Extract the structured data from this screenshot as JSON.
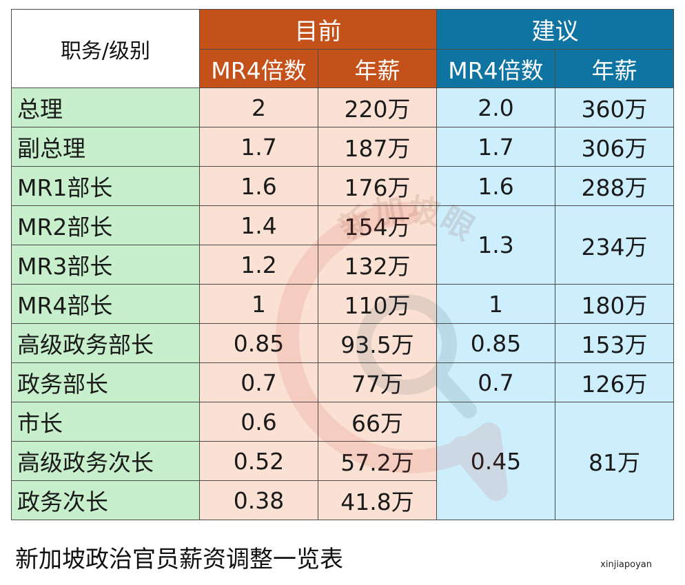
{
  "table": {
    "header": {
      "role_label": "职务/级别",
      "current_label": "目前",
      "proposed_label": "建议",
      "current_cols": [
        "MR4倍数",
        "年薪"
      ],
      "proposed_cols": [
        "MR4倍数",
        "年薪"
      ]
    },
    "rows": [
      {
        "role": "总理",
        "cur_mult": "2",
        "cur_salary": "220万",
        "prop_mult": "2.0",
        "prop_salary": "360万"
      },
      {
        "role": "副总理",
        "cur_mult": "1.7",
        "cur_salary": "187万",
        "prop_mult": "1.7",
        "prop_salary": "306万"
      },
      {
        "role": "MR1部长",
        "cur_mult": "1.6",
        "cur_salary": "176万",
        "prop_mult": "1.6",
        "prop_salary": "288万"
      },
      {
        "role": "MR2部长",
        "cur_mult": "1.4",
        "cur_salary": "154万",
        "prop_mult": "1.3",
        "prop_salary": "234万"
      },
      {
        "role": "MR3部长",
        "cur_mult": "1.2",
        "cur_salary": "132万"
      },
      {
        "role": "MR4部长",
        "cur_mult": "1",
        "cur_salary": "110万",
        "prop_mult": "1",
        "prop_salary": "180万"
      },
      {
        "role": "高级政务部长",
        "cur_mult": "0.85",
        "cur_salary": "93.5万",
        "prop_mult": "0.85",
        "prop_salary": "153万"
      },
      {
        "role": "政务部长",
        "cur_mult": "0.7",
        "cur_salary": "77万",
        "prop_mult": "0.7",
        "prop_salary": "126万"
      },
      {
        "role": "市长",
        "cur_mult": "0.6",
        "cur_salary": "66万",
        "prop_mult": "0.45",
        "prop_salary": "81万"
      },
      {
        "role": "高级政务次长",
        "cur_mult": "0.52",
        "cur_salary": "57.2万"
      },
      {
        "role": "政务次长",
        "cur_mult": "0.38",
        "cur_salary": "41.8万"
      }
    ]
  },
  "caption": "新加坡政治官员薪资调整一览表",
  "credit": "xinjiapoyan",
  "watermark_text": "新加坡眼",
  "colors": {
    "current_header": "#c5511a",
    "proposed_header": "#0f74a1",
    "role_bg": "#c7efcc",
    "current_bg": "#fbe1d3",
    "proposed_bg": "#cdeefc"
  }
}
